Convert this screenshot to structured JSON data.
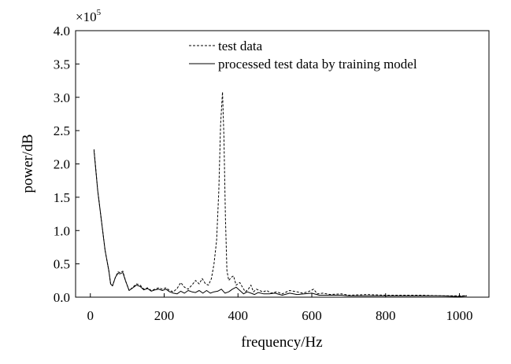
{
  "chart_data": {
    "type": "line",
    "title": "",
    "xlabel": "frequency/Hz",
    "ylabel": "power/dB",
    "y_multiplier": {
      "base": "×10",
      "exponent": "5"
    },
    "xlim": [
      -40,
      1080
    ],
    "ylim": [
      0,
      4.0
    ],
    "x_ticks": [
      0,
      200,
      400,
      600,
      800,
      1000
    ],
    "x_tick_labels": [
      "0",
      "200",
      "400",
      "600",
      "800",
      "1000"
    ],
    "y_ticks": [
      0,
      0.5,
      1.0,
      1.5,
      2.0,
      2.5,
      3.0,
      3.5,
      4.0
    ],
    "y_tick_labels": [
      "0.0",
      "0.5",
      "1.0",
      "1.5",
      "2.0",
      "2.5",
      "3.0",
      "3.5",
      "4.0"
    ],
    "grid": false,
    "legend_position": "top-center",
    "series": [
      {
        "name": "test data",
        "style": "dashed",
        "color": "#000000",
        "points": [
          [
            10,
            2.22
          ],
          [
            20,
            1.6
          ],
          [
            30,
            1.15
          ],
          [
            40,
            0.7
          ],
          [
            50,
            0.4
          ],
          [
            55,
            0.2
          ],
          [
            60,
            0.17
          ],
          [
            68,
            0.3
          ],
          [
            75,
            0.38
          ],
          [
            80,
            0.37
          ],
          [
            88,
            0.39
          ],
          [
            95,
            0.25
          ],
          [
            105,
            0.1
          ],
          [
            115,
            0.15
          ],
          [
            125,
            0.2
          ],
          [
            135,
            0.18
          ],
          [
            145,
            0.12
          ],
          [
            155,
            0.14
          ],
          [
            165,
            0.1
          ],
          [
            175,
            0.12
          ],
          [
            185,
            0.14
          ],
          [
            195,
            0.12
          ],
          [
            205,
            0.14
          ],
          [
            215,
            0.1
          ],
          [
            225,
            0.08
          ],
          [
            235,
            0.13
          ],
          [
            245,
            0.22
          ],
          [
            255,
            0.15
          ],
          [
            265,
            0.12
          ],
          [
            275,
            0.18
          ],
          [
            285,
            0.25
          ],
          [
            295,
            0.2
          ],
          [
            303,
            0.28
          ],
          [
            312,
            0.2
          ],
          [
            320,
            0.18
          ],
          [
            328,
            0.28
          ],
          [
            335,
            0.5
          ],
          [
            342,
            0.85
          ],
          [
            348,
            1.6
          ],
          [
            353,
            2.6
          ],
          [
            358,
            3.08
          ],
          [
            362,
            2.4
          ],
          [
            366,
            1.2
          ],
          [
            370,
            0.4
          ],
          [
            375,
            0.25
          ],
          [
            382,
            0.3
          ],
          [
            388,
            0.32
          ],
          [
            395,
            0.18
          ],
          [
            405,
            0.22
          ],
          [
            412,
            0.15
          ],
          [
            420,
            0.08
          ],
          [
            428,
            0.12
          ],
          [
            435,
            0.18
          ],
          [
            442,
            0.08
          ],
          [
            450,
            0.12
          ],
          [
            458,
            0.1
          ],
          [
            468,
            0.08
          ],
          [
            478,
            0.1
          ],
          [
            490,
            0.06
          ],
          [
            505,
            0.08
          ],
          [
            520,
            0.05
          ],
          [
            540,
            0.1
          ],
          [
            560,
            0.08
          ],
          [
            575,
            0.06
          ],
          [
            590,
            0.08
          ],
          [
            605,
            0.12
          ],
          [
            615,
            0.05
          ],
          [
            630,
            0.06
          ],
          [
            650,
            0.04
          ],
          [
            680,
            0.05
          ],
          [
            700,
            0.03
          ],
          [
            750,
            0.04
          ],
          [
            800,
            0.03
          ],
          [
            850,
            0.03
          ],
          [
            900,
            0.03
          ],
          [
            950,
            0.02
          ],
          [
            1000,
            0.02
          ],
          [
            1020,
            0.02
          ]
        ]
      },
      {
        "name": "processed test data by training model",
        "style": "solid",
        "color": "#000000",
        "points": [
          [
            10,
            2.2
          ],
          [
            20,
            1.6
          ],
          [
            30,
            1.15
          ],
          [
            40,
            0.7
          ],
          [
            50,
            0.4
          ],
          [
            55,
            0.2
          ],
          [
            60,
            0.17
          ],
          [
            68,
            0.3
          ],
          [
            75,
            0.36
          ],
          [
            80,
            0.35
          ],
          [
            88,
            0.37
          ],
          [
            95,
            0.25
          ],
          [
            105,
            0.1
          ],
          [
            115,
            0.14
          ],
          [
            125,
            0.18
          ],
          [
            135,
            0.16
          ],
          [
            145,
            0.11
          ],
          [
            155,
            0.13
          ],
          [
            165,
            0.09
          ],
          [
            175,
            0.11
          ],
          [
            185,
            0.12
          ],
          [
            195,
            0.1
          ],
          [
            205,
            0.12
          ],
          [
            215,
            0.08
          ],
          [
            225,
            0.06
          ],
          [
            235,
            0.05
          ],
          [
            245,
            0.09
          ],
          [
            255,
            0.06
          ],
          [
            265,
            0.1
          ],
          [
            275,
            0.08
          ],
          [
            285,
            0.07
          ],
          [
            295,
            0.1
          ],
          [
            305,
            0.06
          ],
          [
            315,
            0.1
          ],
          [
            325,
            0.06
          ],
          [
            335,
            0.08
          ],
          [
            345,
            0.09
          ],
          [
            355,
            0.12
          ],
          [
            365,
            0.06
          ],
          [
            375,
            0.08
          ],
          [
            385,
            0.12
          ],
          [
            395,
            0.15
          ],
          [
            405,
            0.1
          ],
          [
            415,
            0.05
          ],
          [
            425,
            0.08
          ],
          [
            435,
            0.06
          ],
          [
            445,
            0.04
          ],
          [
            455,
            0.07
          ],
          [
            470,
            0.05
          ],
          [
            485,
            0.05
          ],
          [
            500,
            0.06
          ],
          [
            520,
            0.03
          ],
          [
            540,
            0.06
          ],
          [
            560,
            0.04
          ],
          [
            580,
            0.05
          ],
          [
            600,
            0.06
          ],
          [
            620,
            0.03
          ],
          [
            650,
            0.03
          ],
          [
            680,
            0.03
          ],
          [
            700,
            0.02
          ],
          [
            750,
            0.02
          ],
          [
            800,
            0.02
          ],
          [
            850,
            0.02
          ],
          [
            900,
            0.02
          ],
          [
            950,
            0.02
          ],
          [
            1000,
            0.01
          ],
          [
            1020,
            0.02
          ]
        ]
      }
    ]
  }
}
